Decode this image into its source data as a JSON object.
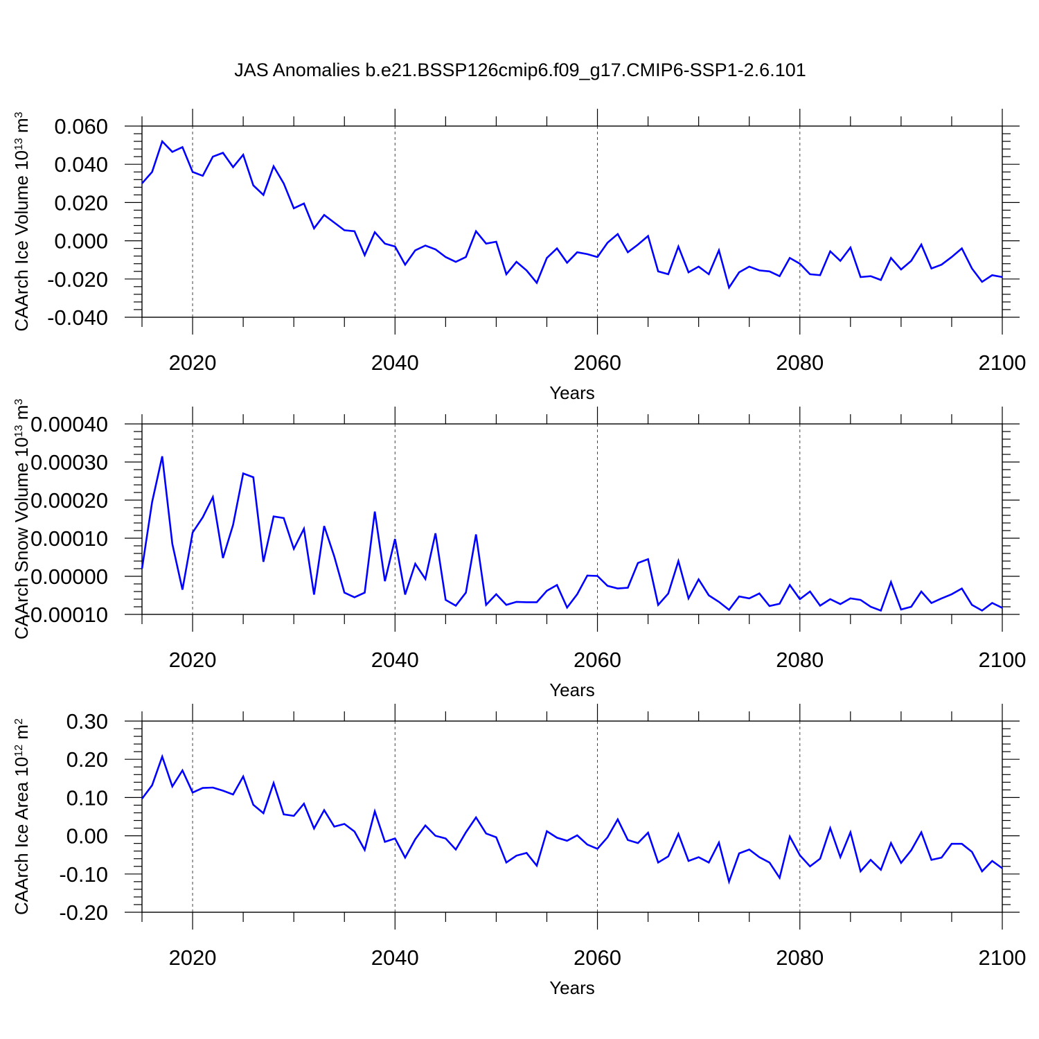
{
  "title": "JAS Anomalies b.e21.BSSP126cmip6.f09_g17.CMIP6-SSP1-2.6.101",
  "colors": {
    "line": "#0000ff",
    "axis": "#000000",
    "grid": "#000000"
  },
  "chart_data": [
    {
      "type": "line",
      "title": "JAS Anomalies b.e21.BSSP126cmip6.f09_g17.CMIP6-SSP1-2.6.101",
      "xlabel": "Years",
      "ylabel": {
        "text": "CAArch Ice Volume 10",
        "sup": "13",
        "unit": " m",
        "unit_sup": "3"
      },
      "xlim": [
        2015,
        2100
      ],
      "ylim": [
        -0.04,
        0.06
      ],
      "xticks": [
        2020,
        2040,
        2060,
        2080,
        2100
      ],
      "xtick_labels": [
        "2020",
        "2040",
        "2060",
        "2080",
        "2100"
      ],
      "yticks": [
        -0.04,
        -0.02,
        0.0,
        0.02,
        0.04,
        0.06
      ],
      "ytick_labels": [
        "-0.040",
        "-0.020",
        "0.000",
        "0.020",
        "0.040",
        "0.060"
      ],
      "grid": "vertical dashed at major x ticks",
      "series": [
        {
          "name": "CAArch Ice Volume",
          "x_start": 2015,
          "values": [
            0.03,
            0.036,
            0.052,
            0.0465,
            0.049,
            0.036,
            0.034,
            0.044,
            0.046,
            0.0385,
            0.045,
            0.029,
            0.024,
            0.039,
            0.03,
            0.017,
            0.0195,
            0.0065,
            0.0135,
            0.0095,
            0.0055,
            0.005,
            -0.0075,
            0.0045,
            -0.0015,
            -0.003,
            -0.0125,
            -0.005,
            -0.0025,
            -0.0045,
            -0.0085,
            -0.011,
            -0.0085,
            0.005,
            -0.0015,
            -0.0005,
            -0.0175,
            -0.011,
            -0.0155,
            -0.022,
            -0.009,
            -0.004,
            -0.0115,
            -0.006,
            -0.007,
            -0.0085,
            -0.001,
            0.0035,
            -0.006,
            -0.002,
            0.0025,
            -0.016,
            -0.0175,
            -0.003,
            -0.0165,
            -0.0135,
            -0.0175,
            -0.005,
            -0.0245,
            -0.0165,
            -0.0135,
            -0.0155,
            -0.016,
            -0.0185,
            -0.009,
            -0.012,
            -0.0175,
            -0.018,
            -0.0055,
            -0.0105,
            -0.0035,
            -0.019,
            -0.0185,
            -0.0205,
            -0.009,
            -0.015,
            -0.0105,
            -0.002,
            -0.0145,
            -0.0125,
            -0.0085,
            -0.004,
            -0.0145,
            -0.0215,
            -0.018,
            -0.019
          ]
        }
      ]
    },
    {
      "type": "line",
      "xlabel": "Years",
      "ylabel": {
        "text": "CAArch Snow Volume 10",
        "sup": "13",
        "unit": " m",
        "unit_sup": "3"
      },
      "xlim": [
        2015,
        2100
      ],
      "ylim": [
        -0.0001,
        0.0004
      ],
      "xticks": [
        2020,
        2040,
        2060,
        2080,
        2100
      ],
      "xtick_labels": [
        "2020",
        "2040",
        "2060",
        "2080",
        "2100"
      ],
      "yticks": [
        -0.0001,
        0.0,
        0.0001,
        0.0002,
        0.0003,
        0.0004
      ],
      "ytick_labels": [
        "-0.00010",
        "0.00000",
        "0.00010",
        "0.00020",
        "0.00030",
        "0.00040"
      ],
      "grid": "vertical dashed at major x ticks",
      "series": [
        {
          "name": "CAArch Snow Volume",
          "x_start": 2015,
          "values": [
            2e-05,
            0.000195,
            0.000315,
            8.5e-05,
            -3.5e-05,
            0.000115,
            0.000155,
            0.000208,
            4.8e-05,
            0.000135,
            0.00027,
            0.00026,
            3.8e-05,
            0.000157,
            0.000153,
            7.2e-05,
            0.000125,
            -4.8e-05,
            0.000132,
            5.2e-05,
            -4.3e-05,
            -5.5e-05,
            -4.3e-05,
            0.00017,
            -1.3e-05,
            9.8e-05,
            -4.8e-05,
            3.3e-05,
            -7e-06,
            0.000113,
            -6.2e-05,
            -7.7e-05,
            -4.3e-05,
            0.00011,
            -7.5e-05,
            -4.7e-05,
            -7.5e-05,
            -6.7e-05,
            -6.8e-05,
            -6.8e-05,
            -3.8e-05,
            -2.3e-05,
            -8.2e-05,
            -4.7e-05,
            2e-06,
            1e-06,
            -2.5e-05,
            -3.2e-05,
            -3e-05,
            3.5e-05,
            4.5e-05,
            -7.5e-05,
            -4.5e-05,
            4e-05,
            -5.8e-05,
            -8e-06,
            -5e-05,
            -6.7e-05,
            -8.8e-05,
            -5.3e-05,
            -5.8e-05,
            -4.5e-05,
            -7.8e-05,
            -7.2e-05,
            -2.3e-05,
            -6e-05,
            -4e-05,
            -7.7e-05,
            -6e-05,
            -7.3e-05,
            -5.8e-05,
            -6.2e-05,
            -8e-05,
            -9e-05,
            -1.5e-05,
            -8.7e-05,
            -8e-05,
            -4e-05,
            -7e-05,
            -5.8e-05,
            -4.7e-05,
            -3.2e-05,
            -7.5e-05,
            -9e-05,
            -7e-05,
            -8.3e-05
          ]
        }
      ]
    },
    {
      "type": "line",
      "xlabel": "Years",
      "ylabel": {
        "text": "CAArch Ice Area 10",
        "sup": "12",
        "unit": " m",
        "unit_sup": "2"
      },
      "xlim": [
        2015,
        2100
      ],
      "ylim": [
        -0.2,
        0.3
      ],
      "xticks": [
        2020,
        2040,
        2060,
        2080,
        2100
      ],
      "xtick_labels": [
        "2020",
        "2040",
        "2060",
        "2080",
        "2100"
      ],
      "yticks": [
        -0.2,
        -0.1,
        0.0,
        0.1,
        0.2,
        0.3
      ],
      "ytick_labels": [
        "-0.20",
        "-0.10",
        "0.00",
        "0.10",
        "0.20",
        "0.30"
      ],
      "grid": "vertical dashed at major x ticks",
      "series": [
        {
          "name": "CAArch Ice Area",
          "x_start": 2015,
          "values": [
            0.097,
            0.132,
            0.207,
            0.129,
            0.171,
            0.113,
            0.125,
            0.126,
            0.118,
            0.108,
            0.155,
            0.081,
            0.059,
            0.138,
            0.056,
            0.052,
            0.084,
            0.019,
            0.067,
            0.024,
            0.031,
            0.011,
            -0.037,
            0.064,
            -0.016,
            -0.007,
            -0.057,
            -0.009,
            0.027,
            0.0,
            -0.007,
            -0.036,
            0.009,
            0.048,
            0.006,
            -0.004,
            -0.07,
            -0.052,
            -0.045,
            -0.078,
            0.012,
            -0.005,
            -0.013,
            0.001,
            -0.023,
            -0.034,
            -0.004,
            0.043,
            -0.011,
            -0.019,
            0.008,
            -0.07,
            -0.054,
            0.005,
            -0.066,
            -0.056,
            -0.07,
            -0.018,
            -0.12,
            -0.046,
            -0.036,
            -0.056,
            -0.07,
            -0.11,
            -0.002,
            -0.051,
            -0.08,
            -0.06,
            0.02,
            -0.056,
            0.009,
            -0.093,
            -0.063,
            -0.089,
            -0.019,
            -0.071,
            -0.038,
            0.009,
            -0.063,
            -0.057,
            -0.021,
            -0.021,
            -0.042,
            -0.093,
            -0.066,
            -0.085
          ]
        }
      ]
    }
  ]
}
